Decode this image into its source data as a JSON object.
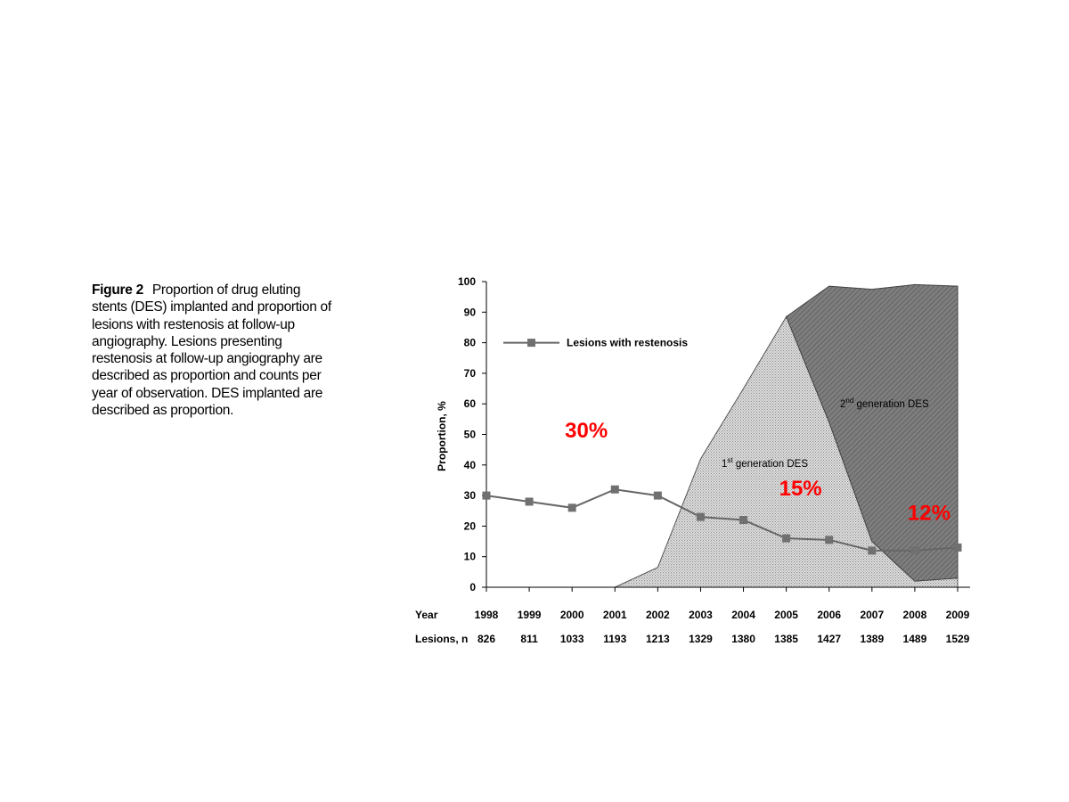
{
  "caption": {
    "label": "Figure 2",
    "text": "Proportion of drug eluting stents (DES) implanted and proportion of lesions with restenosis at follow-up angiography. Lesions presenting restenosis at follow-up angiography are described as proportion and counts per year of observation. DES implanted are described as proportion."
  },
  "colors": {
    "first_gen_fill": "#d4d4d4",
    "second_gen_fill": "#7a7a7a",
    "line": "#666666",
    "marker": "#707070",
    "annotation": "#ff0000"
  },
  "chart_data": {
    "type": "area",
    "x": [
      "1998",
      "1999",
      "2000",
      "2001",
      "2002",
      "2003",
      "2004",
      "2005",
      "2006",
      "2007",
      "2008",
      "2009"
    ],
    "ylabel": "Proportion, %",
    "ylim": [
      0,
      100
    ],
    "yticks": [
      0,
      10,
      20,
      30,
      40,
      50,
      60,
      70,
      80,
      90,
      100
    ],
    "grid": false,
    "legend": {
      "position": "top-left",
      "entries": [
        "Lesions with restenosis"
      ]
    },
    "series": [
      {
        "name": "Lesions with restenosis",
        "kind": "line-marker",
        "values": [
          30,
          28,
          26,
          32,
          30,
          23,
          22,
          16,
          15.5,
          12,
          12,
          13
        ]
      },
      {
        "name": "1st generation DES",
        "kind": "area",
        "values": [
          0,
          0,
          0,
          0,
          6.5,
          42,
          65,
          88.5,
          54,
          15,
          2,
          3
        ]
      },
      {
        "name": "2nd generation DES",
        "kind": "stacked-area",
        "values": [
          0,
          0,
          0,
          0,
          0,
          0,
          0,
          0,
          44.5,
          82.5,
          97,
          95.5
        ]
      }
    ],
    "area_labels": [
      {
        "base": "1",
        "sup": "st",
        "rest": " generation DES"
      },
      {
        "base": "2",
        "sup": "nd",
        "rest": " generation DES"
      }
    ],
    "table": {
      "row_labels": [
        "Year",
        "Lesions, n"
      ],
      "years": [
        "1998",
        "1999",
        "2000",
        "2001",
        "2002",
        "2003",
        "2004",
        "2005",
        "2006",
        "2007",
        "2008",
        "2009"
      ],
      "lesions": [
        "826",
        "811",
        "1033",
        "1193",
        "1213",
        "1329",
        "1380",
        "1385",
        "1427",
        "1389",
        "1489",
        "1529"
      ]
    },
    "annotations": [
      {
        "text": "30%",
        "x": "2000",
        "y": 49
      },
      {
        "text": "15%",
        "x": "2005",
        "y": 30
      },
      {
        "text": "12%",
        "x": "2008",
        "y": 22
      }
    ]
  }
}
